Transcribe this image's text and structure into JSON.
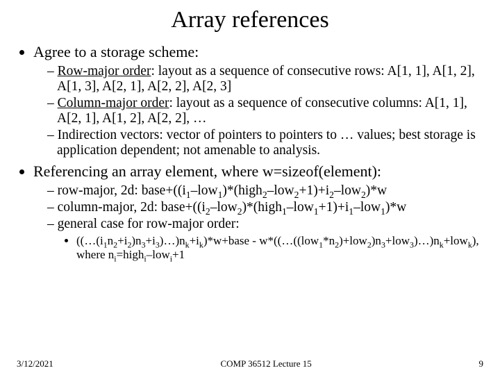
{
  "title": "Array references",
  "bullets": {
    "b1": "Agree to a storage scheme:",
    "b1_1_label": "Row-major order",
    "b1_1_rest": ": layout as a sequence of consecutive rows: A[1, 1], A[1, 2], A[1, 3], A[2, 1], A[2, 2], A[2, 3]",
    "b1_2_label": "Column-major order",
    "b1_2_rest": ": layout as a sequence of consecutive columns: A[1, 1], A[2, 1], A[1, 2], A[2, 2], …",
    "b1_3": "Indirection vectors: vector of pointers to pointers to … values; best storage is application dependent; not amenable to analysis.",
    "b2": "Referencing an array element, where w=sizeof(element):",
    "b2_3": "general case for row-major order:"
  },
  "footer": {
    "date": "3/12/2021",
    "center": "COMP 36512 Lecture 15",
    "page": "9"
  },
  "style": {
    "background_color": "#ffffff",
    "text_color": "#000000",
    "font_family": "Times New Roman",
    "title_fontsize": 34,
    "level1_fontsize": 22,
    "level2_fontsize": 19.5,
    "level3_fontsize": 17,
    "footer_fontsize": 13,
    "slide_width": 720,
    "slide_height": 540
  }
}
